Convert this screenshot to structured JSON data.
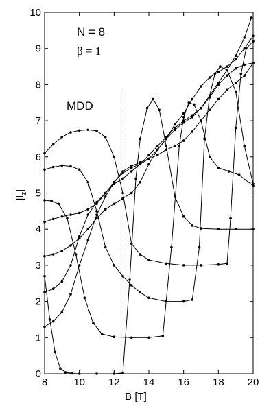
{
  "chart_data": {
    "type": "line",
    "xlabel": "B [T]",
    "ylabel": "|l",
    "ylabel_subscript": "z",
    "ylabel_suffix": "|",
    "xlim": [
      8,
      20
    ],
    "ylim": [
      0,
      10
    ],
    "xticks": [
      8,
      10,
      12,
      14,
      16,
      18,
      20
    ],
    "yticks": [
      0,
      1,
      2,
      3,
      4,
      5,
      6,
      7,
      8,
      9,
      10
    ],
    "grid": false,
    "legend": "none",
    "annotations": {
      "n_label": "N = 8",
      "beta_label": "β = 1",
      "mdd_label": "MDD"
    },
    "reference_line": {
      "x": 12.4,
      "style": "dashed",
      "y_top": 7.85
    },
    "series": [
      {
        "values": [
          [
            8,
            2.7
          ],
          [
            8.3,
            1.5
          ],
          [
            8.6,
            0.6
          ],
          [
            8.9,
            0.15
          ],
          [
            9.2,
            0.04
          ],
          [
            9.6,
            0.01
          ],
          [
            10,
            0
          ],
          [
            11,
            0
          ],
          [
            12,
            0
          ],
          [
            12.5,
            0.02
          ],
          [
            12.9,
            2.6
          ],
          [
            13.25,
            5.4
          ],
          [
            13.5,
            6.5
          ],
          [
            13.9,
            7.35
          ],
          [
            14.25,
            7.6
          ],
          [
            14.6,
            7.3
          ],
          [
            15.0,
            6.3
          ],
          [
            15.5,
            4.9
          ],
          [
            16.0,
            4.35
          ],
          [
            16.5,
            4.1
          ],
          [
            17.0,
            4.02
          ],
          [
            18,
            4.0
          ],
          [
            19,
            4.0
          ],
          [
            20,
            4.0
          ]
        ]
      },
      {
        "values": [
          [
            8,
            4.8
          ],
          [
            8.4,
            4.78
          ],
          [
            8.8,
            4.7
          ],
          [
            9.3,
            4.3
          ],
          [
            9.8,
            3.3
          ],
          [
            10.3,
            2.1
          ],
          [
            10.8,
            1.4
          ],
          [
            11.3,
            1.1
          ],
          [
            12,
            1.02
          ],
          [
            13,
            1.0
          ],
          [
            14,
            1.0
          ],
          [
            14.8,
            1.05
          ],
          [
            15.3,
            3.5
          ],
          [
            15.75,
            6.3
          ],
          [
            16.0,
            7.1
          ],
          [
            16.3,
            7.5
          ],
          [
            16.6,
            7.45
          ],
          [
            17.0,
            7.0
          ],
          [
            17.5,
            6.0
          ],
          [
            18.0,
            5.7
          ],
          [
            18.6,
            5.6
          ],
          [
            19.2,
            5.5
          ],
          [
            20,
            5.2
          ]
        ]
      },
      {
        "values": [
          [
            8,
            5.65
          ],
          [
            8.5,
            5.72
          ],
          [
            9,
            5.76
          ],
          [
            9.5,
            5.74
          ],
          [
            10,
            5.65
          ],
          [
            10.5,
            5.3
          ],
          [
            11,
            4.5
          ],
          [
            11.5,
            3.5
          ],
          [
            12,
            3.0
          ],
          [
            12.5,
            2.7
          ],
          [
            13,
            2.45
          ],
          [
            13.5,
            2.25
          ],
          [
            14,
            2.1
          ],
          [
            15,
            2.0
          ],
          [
            16,
            2.0
          ],
          [
            16.5,
            2.05
          ],
          [
            16.9,
            3.5
          ],
          [
            17.2,
            6.5
          ],
          [
            17.5,
            7.7
          ],
          [
            17.8,
            8.3
          ],
          [
            18.1,
            8.5
          ],
          [
            18.5,
            8.4
          ],
          [
            19,
            7.8
          ],
          [
            19.5,
            6.3
          ],
          [
            20,
            5.25
          ]
        ]
      },
      {
        "values": [
          [
            8,
            6.1
          ],
          [
            8.5,
            6.35
          ],
          [
            9,
            6.55
          ],
          [
            9.5,
            6.68
          ],
          [
            10,
            6.73
          ],
          [
            10.5,
            6.75
          ],
          [
            11,
            6.72
          ],
          [
            11.5,
            6.55
          ],
          [
            12,
            6.0
          ],
          [
            12.5,
            5.0
          ],
          [
            13,
            3.6
          ],
          [
            13.5,
            3.3
          ],
          [
            14,
            3.15
          ],
          [
            15,
            3.05
          ],
          [
            16,
            3.0
          ],
          [
            17,
            3.0
          ],
          [
            18,
            3.02
          ],
          [
            18.5,
            3.05
          ],
          [
            18.7,
            4.3
          ],
          [
            19.0,
            6.8
          ],
          [
            19.3,
            8.3
          ],
          [
            19.6,
            9.0
          ],
          [
            20,
            9.2
          ]
        ]
      },
      {
        "values": [
          [
            8,
            1.3
          ],
          [
            8.5,
            1.45
          ],
          [
            9,
            1.7
          ],
          [
            9.5,
            2.2
          ],
          [
            10,
            3.0
          ],
          [
            10.5,
            3.7
          ],
          [
            11,
            4.4
          ],
          [
            11.5,
            4.9
          ],
          [
            12,
            5.3
          ],
          [
            12.5,
            5.6
          ],
          [
            13,
            5.75
          ],
          [
            13.5,
            5.85
          ],
          [
            14,
            5.95
          ],
          [
            14.5,
            6.05
          ],
          [
            15,
            6.2
          ],
          [
            15.5,
            6.3
          ],
          [
            16,
            6.45
          ],
          [
            16.5,
            6.7
          ],
          [
            17,
            7.0
          ],
          [
            17.5,
            7.3
          ],
          [
            18,
            7.6
          ],
          [
            18.5,
            7.85
          ],
          [
            19,
            8.05
          ],
          [
            19.5,
            8.25
          ],
          [
            20,
            8.6
          ]
        ]
      },
      {
        "values": [
          [
            8,
            2.25
          ],
          [
            8.5,
            2.35
          ],
          [
            9,
            2.55
          ],
          [
            9.5,
            3.0
          ],
          [
            10,
            3.8
          ],
          [
            10.5,
            4.4
          ],
          [
            11,
            4.75
          ],
          [
            11.5,
            5.0
          ],
          [
            12,
            5.25
          ],
          [
            12.5,
            5.4
          ],
          [
            13,
            5.6
          ],
          [
            13.5,
            5.8
          ],
          [
            14,
            6.05
          ],
          [
            14.5,
            6.3
          ],
          [
            15,
            6.55
          ],
          [
            15.5,
            6.8
          ],
          [
            16,
            7.0
          ],
          [
            16.5,
            7.15
          ],
          [
            17,
            7.35
          ],
          [
            17.5,
            7.65
          ],
          [
            18,
            8.0
          ],
          [
            18.5,
            8.25
          ],
          [
            19,
            8.45
          ],
          [
            19.5,
            8.55
          ],
          [
            20,
            8.6
          ]
        ]
      },
      {
        "values": [
          [
            8,
            3.25
          ],
          [
            8.5,
            3.3
          ],
          [
            9,
            3.4
          ],
          [
            9.5,
            3.55
          ],
          [
            10,
            3.75
          ],
          [
            10.5,
            4.0
          ],
          [
            11,
            4.3
          ],
          [
            11.5,
            4.55
          ],
          [
            12,
            4.7
          ],
          [
            12.5,
            4.85
          ],
          [
            13,
            5.0
          ],
          [
            13.5,
            5.3
          ],
          [
            14,
            5.8
          ],
          [
            14.5,
            6.2
          ],
          [
            15,
            6.5
          ],
          [
            15.5,
            6.9
          ],
          [
            16,
            7.2
          ],
          [
            16.5,
            7.6
          ],
          [
            17,
            7.95
          ],
          [
            17.5,
            8.2
          ],
          [
            18,
            8.35
          ],
          [
            18.5,
            8.5
          ],
          [
            19,
            8.7
          ],
          [
            19.5,
            9.0
          ],
          [
            20,
            9.35
          ]
        ]
      },
      {
        "values": [
          [
            8,
            4.2
          ],
          [
            8.5,
            4.28
          ],
          [
            9,
            4.35
          ],
          [
            9.5,
            4.4
          ],
          [
            10,
            4.45
          ],
          [
            10.5,
            4.55
          ],
          [
            11,
            4.7
          ],
          [
            11.5,
            5.0
          ],
          [
            12,
            5.3
          ],
          [
            12.5,
            5.55
          ],
          [
            13,
            5.7
          ],
          [
            13.5,
            5.8
          ],
          [
            14,
            5.95
          ],
          [
            14.5,
            6.2
          ],
          [
            15,
            6.5
          ],
          [
            15.5,
            6.75
          ],
          [
            16,
            6.95
          ],
          [
            16.5,
            7.1
          ],
          [
            17,
            7.35
          ],
          [
            17.5,
            7.7
          ],
          [
            18,
            8.05
          ],
          [
            18.5,
            8.4
          ],
          [
            19,
            8.8
          ],
          [
            19.5,
            9.3
          ],
          [
            19.9,
            9.85
          ]
        ]
      }
    ]
  }
}
